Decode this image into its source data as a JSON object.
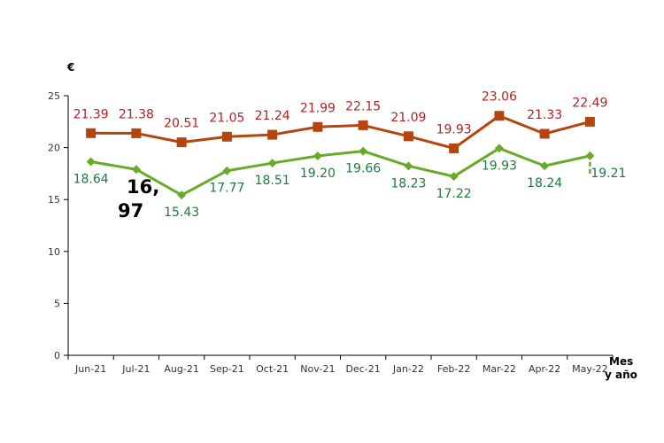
{
  "chart_data": {
    "type": "line",
    "title": "",
    "ylabel": "€",
    "xlabel": "Mes y año",
    "xlabel_lines": [
      "Mes",
      "y año"
    ],
    "ylim": [
      0,
      25
    ],
    "yticks": [
      0,
      5,
      10,
      15,
      20,
      25
    ],
    "grid": false,
    "categories": [
      "Jun-21",
      "Jul-21",
      "Aug-21",
      "Sep-21",
      "Oct-21",
      "Nov-21",
      "Dec-21",
      "Jan-22",
      "Feb-22",
      "Mar-22",
      "Apr-22",
      "May-22"
    ],
    "series": [
      {
        "values": [
          21.39,
          21.38,
          20.51,
          21.05,
          21.24,
          21.99,
          22.15,
          21.09,
          19.93,
          23.06,
          21.33,
          22.49
        ],
        "labels": [
          "21.39",
          "21.38",
          "20.51",
          "21.05",
          "21.24",
          "21.99",
          "22.15",
          "21.09",
          "19.93",
          "23.06",
          "21.33",
          "22.49"
        ],
        "color": "#b5440f",
        "label_color": "#b22222",
        "marker": "square"
      },
      {
        "values": [
          18.64,
          17.9,
          15.43,
          17.77,
          18.51,
          19.2,
          19.66,
          18.23,
          17.22,
          19.93,
          18.24,
          19.21
        ],
        "labels": [
          "18.64",
          "",
          "15.43",
          "17.77",
          "18.51",
          "19.20",
          "19.66",
          "18.23",
          "17.22",
          "19.93",
          "18.24",
          "19.21"
        ],
        "color": "#6aaa2a",
        "label_color": "#1e7a3c",
        "marker": "diamond"
      }
    ],
    "annotations": [
      "16,",
      "97"
    ]
  }
}
